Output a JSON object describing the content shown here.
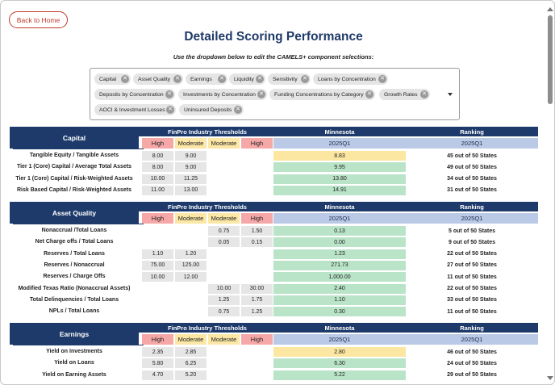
{
  "nav": {
    "back_label": "Back to Home"
  },
  "page": {
    "title": "Detailed Scoring Performance",
    "instructions": "Use the dropdown below to edit the CAMELS+ component selections:"
  },
  "selections": [
    "Capital",
    "Asset Quality",
    "Earnings",
    "Liquidity",
    "Sensitivity",
    "Loans by Concentration",
    "Deposits by Concentration",
    "Investments by Concentration",
    "Funding Concentrations by Category",
    "Growth Rates",
    "AOCI & Investment Losses",
    "Uninsured Deposits"
  ],
  "table_headers": {
    "thresholds": "FinPro Industry Thresholds",
    "state": "Minnesota",
    "ranking": "Ranking",
    "high": "High",
    "moderate": "Moderate",
    "quarter": "2025Q1"
  },
  "colors": {
    "navy": "#1d3a6b",
    "high": "#f6a7a7",
    "moderate": "#fce7a6",
    "quarter": "#b9c9e6",
    "value_green": "#b9e4c8",
    "value_yellow": "#fbe7a1",
    "back_button": "#c0392b"
  },
  "sections": [
    {
      "name": "Capital",
      "rows": [
        {
          "metric": "Tangible Equity / Tangible Assets",
          "t": [
            "8.00",
            "9.00",
            "",
            ""
          ],
          "value": "8.83",
          "status": "yellow",
          "rank": "45 out of 50 States"
        },
        {
          "metric": "Tier 1 (Core) Capital / Average Total Assets",
          "t": [
            "8.00",
            "9.00",
            "",
            ""
          ],
          "value": "9.95",
          "status": "green",
          "rank": "49 out of 50 States"
        },
        {
          "metric": "Tier 1 (Core) Capital / Risk-Weighted Assets",
          "t": [
            "10.00",
            "11.25",
            "",
            ""
          ],
          "value": "13.80",
          "status": "green",
          "rank": "34 out of 50 States"
        },
        {
          "metric": "Risk Based Capital / Risk-Weighted Assets",
          "t": [
            "11.00",
            "13.00",
            "",
            ""
          ],
          "value": "14.91",
          "status": "green",
          "rank": "31 out of 50 States"
        }
      ]
    },
    {
      "name": "Asset Quality",
      "rows": [
        {
          "metric": "Nonaccrual /Total Loans",
          "t": [
            "",
            "",
            "0.75",
            "1.50"
          ],
          "value": "0.13",
          "status": "green",
          "rank": "5 out of 50 States"
        },
        {
          "metric": "Net Charge offs / Total Loans",
          "t": [
            "",
            "",
            "0.05",
            "0.15"
          ],
          "value": "0.00",
          "status": "green",
          "rank": "9 out of 50 States"
        },
        {
          "metric": "Reserves / Total Loans",
          "t": [
            "1.10",
            "1.20",
            "",
            ""
          ],
          "value": "1.23",
          "status": "green",
          "rank": "22 out of 50 States"
        },
        {
          "metric": "Reserves / Nonaccrual",
          "t": [
            "75.00",
            "125.00",
            "",
            ""
          ],
          "value": "271.73",
          "status": "green",
          "rank": "27 out of 50 States"
        },
        {
          "metric": "Reserves / Charge Offs",
          "t": [
            "10.00",
            "12.00",
            "",
            ""
          ],
          "value": "1,000.00",
          "status": "green",
          "rank": "11 out of 50 States"
        },
        {
          "metric": "Modified Texas Ratio (Nonaccrual Assets)",
          "t": [
            "",
            "",
            "10.00",
            "30.00"
          ],
          "value": "2.40",
          "status": "green",
          "rank": "22 out of 50 States"
        },
        {
          "metric": "Total Delinquencies / Total Loans",
          "t": [
            "",
            "",
            "1.25",
            "1.75"
          ],
          "value": "1.10",
          "status": "green",
          "rank": "33 out of 50 States"
        },
        {
          "metric": "NPLs / Total Loans",
          "t": [
            "",
            "",
            "0.75",
            "1.25"
          ],
          "value": "0.30",
          "status": "green",
          "rank": "11 out of 50 States"
        }
      ]
    },
    {
      "name": "Earnings",
      "rows": [
        {
          "metric": "Yield on Investments",
          "t": [
            "2.35",
            "2.85",
            "",
            ""
          ],
          "value": "2.80",
          "status": "yellow",
          "rank": "46 out of 50 States"
        },
        {
          "metric": "Yield on Loans",
          "t": [
            "5.80",
            "6.25",
            "",
            ""
          ],
          "value": "6.30",
          "status": "green",
          "rank": "24 out of 50 States"
        },
        {
          "metric": "Yield on Earning Assets",
          "t": [
            "4.70",
            "5.20",
            "",
            ""
          ],
          "value": "5.22",
          "status": "green",
          "rank": "29 out of 50 States"
        }
      ]
    }
  ]
}
